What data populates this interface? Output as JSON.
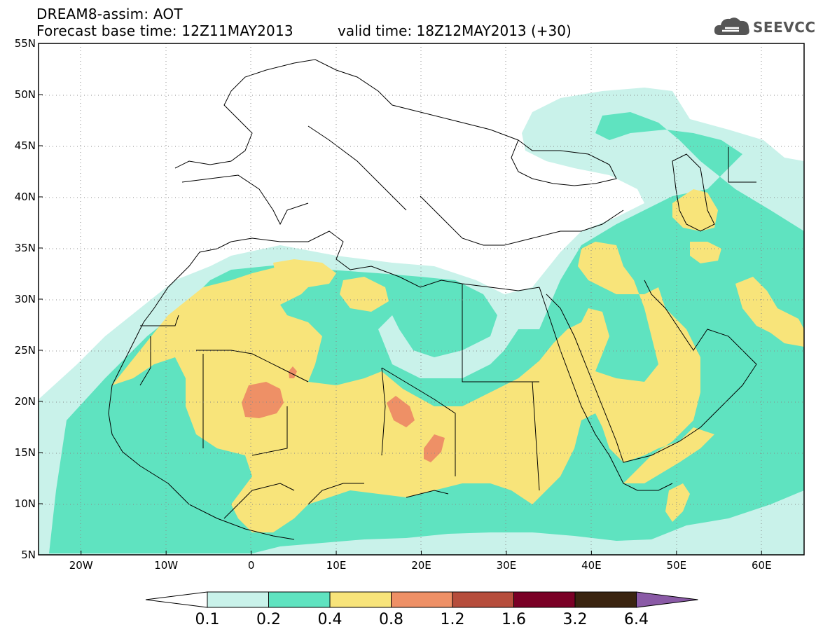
{
  "header": {
    "title_line1": "DREAM8-assim: AOT",
    "title_line2": "Forecast base time: 12Z11MAY2013",
    "valid_time": "valid time: 18Z12MAY2013 (+30)"
  },
  "logo": {
    "text": "SEEVCCC",
    "icon": "cloud-icon"
  },
  "map": {
    "lat_labels": [
      "55N",
      "50N",
      "45N",
      "40N",
      "35N",
      "30N",
      "25N",
      "20N",
      "15N",
      "10N",
      "5N"
    ],
    "lon_labels": [
      "20W",
      "10W",
      "0",
      "10E",
      "20E",
      "30E",
      "40E",
      "50E",
      "60E"
    ],
    "lat_values": [
      55,
      50,
      45,
      40,
      35,
      30,
      25,
      20,
      15,
      10,
      5
    ],
    "lon_values": [
      -20,
      -10,
      0,
      10,
      20,
      30,
      40,
      50,
      60
    ],
    "extent": {
      "lon_min": -25,
      "lon_max": 65,
      "lat_min": 5,
      "lat_max": 55
    }
  },
  "legend": {
    "labels": [
      "0.1",
      "0.2",
      "0.4",
      "0.8",
      "1.2",
      "1.6",
      "3.2",
      "6.4"
    ],
    "colors": [
      "#c9f2ea",
      "#5fe3c0",
      "#f8e47a",
      "#ee9066",
      "#b64d3c",
      "#7a0026",
      "#3a2410",
      "#8a5aa6"
    ]
  }
}
